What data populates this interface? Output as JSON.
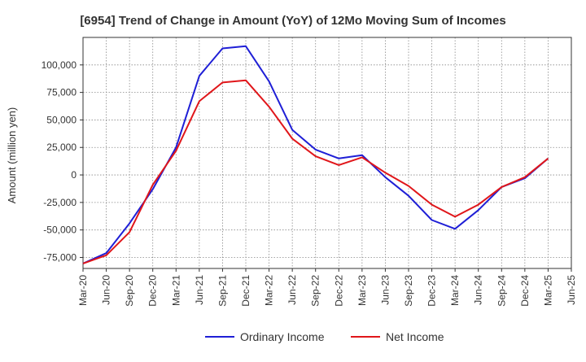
{
  "chart_data": {
    "type": "line",
    "title": "[6954]  Trend of Change in Amount (YoY) of 12Mo Moving Sum of Incomes",
    "xlabel": "",
    "ylabel": "Amount (million yen)",
    "categories": [
      "Mar-20",
      "Jun-20",
      "Sep-20",
      "Dec-20",
      "Mar-21",
      "Jun-21",
      "Sep-21",
      "Dec-21",
      "Mar-22",
      "Jun-22",
      "Sep-22",
      "Dec-22",
      "Mar-23",
      "Jun-23",
      "Sep-23",
      "Dec-23",
      "Mar-24",
      "Jun-24",
      "Sep-24",
      "Dec-24",
      "Mar-25",
      "Jun-25"
    ],
    "ylim": [
      -85000,
      125000
    ],
    "yticks": [
      -75000,
      -50000,
      -25000,
      0,
      25000,
      50000,
      75000,
      100000
    ],
    "ytick_labels": [
      "-75,000",
      "-50,000",
      "-25,000",
      "0",
      "25,000",
      "50,000",
      "75,000",
      "100,000"
    ],
    "grid": true,
    "legend_position": "bottom",
    "series": [
      {
        "name": "Ordinary Income",
        "color": "#1f1fd6",
        "values": [
          -80500,
          -71000,
          -44000,
          -13000,
          25000,
          90000,
          115000,
          117000,
          85000,
          41000,
          23000,
          15000,
          18000,
          -2000,
          -19000,
          -41000,
          -49000,
          -32000,
          -11000,
          -3000,
          15000,
          null
        ]
      },
      {
        "name": "Net Income",
        "color": "#e0161a",
        "values": [
          -80500,
          -73000,
          -52000,
          -9000,
          22000,
          67000,
          84000,
          86000,
          62000,
          33000,
          17000,
          9000,
          16000,
          2000,
          -10000,
          -27000,
          -38000,
          -27000,
          -11000,
          -2000,
          15000,
          null
        ]
      }
    ]
  }
}
